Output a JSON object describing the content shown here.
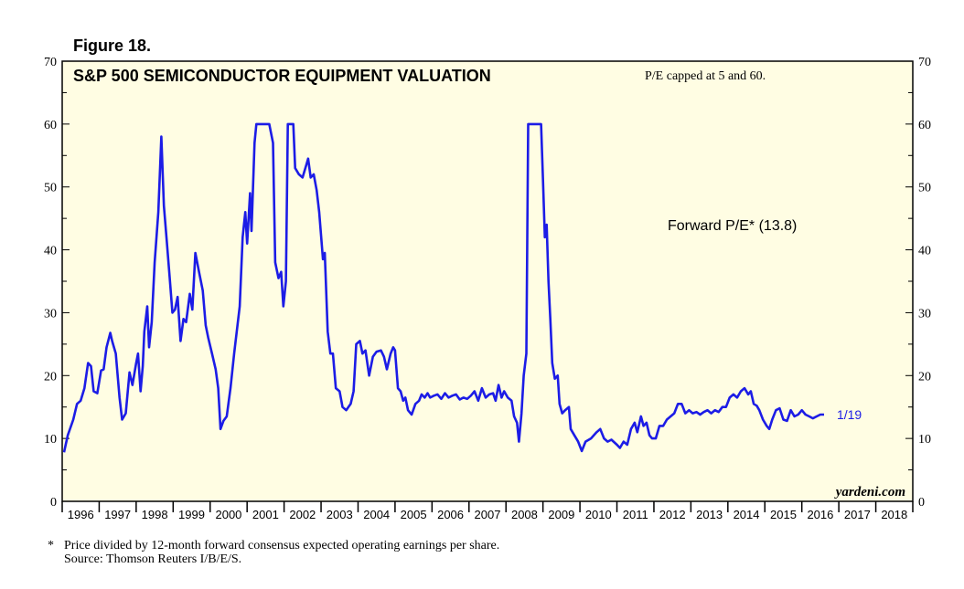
{
  "figure_label": "Figure 18.",
  "footnote": {
    "marker": "*",
    "text": "Price divided by 12-month forward consensus expected operating earnings per share.",
    "source": "Source: Thomson Reuters I/B/E/S."
  },
  "chart_data": {
    "type": "line",
    "title": "S&P 500 SEMICONDUCTOR EQUIPMENT VALUATION",
    "note": "P/E capped at 5 and 60.",
    "watermark": "yardeni.com",
    "ylim": [
      0,
      70
    ],
    "yticks": [
      "0",
      "10",
      "20",
      "30",
      "40",
      "50",
      "60",
      "70"
    ],
    "xlim": [
      1996,
      2019
    ],
    "xtick_labels": [
      "1996",
      "1997",
      "1998",
      "1999",
      "2000",
      "2001",
      "2002",
      "2003",
      "2004",
      "2005",
      "2006",
      "2007",
      "2008",
      "2009",
      "2010",
      "2011",
      "2012",
      "2013",
      "2014",
      "2015",
      "2016",
      "2017",
      "2018"
    ],
    "colors": {
      "plot_bg": "#FFFDE3",
      "line": "#1C1CE6",
      "axis": "#000000"
    },
    "series": [
      {
        "name": "Forward P/E* (13.8)",
        "end_label": "1/19",
        "points": [
          [
            1996.05,
            7.8
          ],
          [
            1996.15,
            10.5
          ],
          [
            1996.3,
            13
          ],
          [
            1996.4,
            15.5
          ],
          [
            1996.5,
            16
          ],
          [
            1996.6,
            18
          ],
          [
            1996.7,
            22
          ],
          [
            1996.78,
            21.5
          ],
          [
            1996.85,
            17.5
          ],
          [
            1996.95,
            17.2
          ],
          [
            1997.05,
            20.8
          ],
          [
            1997.12,
            21
          ],
          [
            1997.2,
            24.5
          ],
          [
            1997.3,
            26.8
          ],
          [
            1997.35,
            25.5
          ],
          [
            1997.45,
            23.5
          ],
          [
            1997.55,
            16.5
          ],
          [
            1997.62,
            13
          ],
          [
            1997.72,
            14
          ],
          [
            1997.82,
            20.5
          ],
          [
            1997.9,
            18.5
          ],
          [
            1998.0,
            22
          ],
          [
            1998.05,
            23.5
          ],
          [
            1998.12,
            17.5
          ],
          [
            1998.18,
            21.5
          ],
          [
            1998.22,
            27
          ],
          [
            1998.3,
            31
          ],
          [
            1998.35,
            24.5
          ],
          [
            1998.42,
            28.5
          ],
          [
            1998.5,
            38
          ],
          [
            1998.6,
            46
          ],
          [
            1998.68,
            58
          ],
          [
            1998.75,
            47
          ],
          [
            1998.82,
            42
          ],
          [
            1998.9,
            36
          ],
          [
            1998.98,
            30
          ],
          [
            1999.05,
            30.5
          ],
          [
            1999.12,
            32.5
          ],
          [
            1999.2,
            25.5
          ],
          [
            1999.28,
            29
          ],
          [
            1999.35,
            28.5
          ],
          [
            1999.45,
            33
          ],
          [
            1999.52,
            30.5
          ],
          [
            1999.6,
            39.5
          ],
          [
            1999.7,
            36.5
          ],
          [
            1999.8,
            33.5
          ],
          [
            1999.88,
            28
          ],
          [
            1999.95,
            26
          ],
          [
            2000.05,
            23.5
          ],
          [
            2000.15,
            21
          ],
          [
            2000.22,
            18
          ],
          [
            2000.28,
            11.5
          ],
          [
            2000.36,
            12.8
          ],
          [
            2000.45,
            13.5
          ],
          [
            2000.55,
            18
          ],
          [
            2000.65,
            23.5
          ],
          [
            2000.8,
            31
          ],
          [
            2000.88,
            42
          ],
          [
            2000.95,
            46
          ],
          [
            2001.0,
            41
          ],
          [
            2001.08,
            49
          ],
          [
            2001.12,
            43
          ],
          [
            2001.2,
            57
          ],
          [
            2001.25,
            60
          ],
          [
            2001.4,
            60
          ],
          [
            2001.6,
            60
          ],
          [
            2001.7,
            57
          ],
          [
            2001.76,
            38
          ],
          [
            2001.85,
            35.5
          ],
          [
            2001.92,
            36.5
          ],
          [
            2001.98,
            31
          ],
          [
            2002.05,
            35
          ],
          [
            2002.1,
            60
          ],
          [
            2002.25,
            60
          ],
          [
            2002.3,
            53
          ],
          [
            2002.4,
            52
          ],
          [
            2002.5,
            51.5
          ],
          [
            2002.6,
            53.5
          ],
          [
            2002.65,
            54.5
          ],
          [
            2002.72,
            51.5
          ],
          [
            2002.8,
            52
          ],
          [
            2002.88,
            49.5
          ],
          [
            2002.95,
            46
          ],
          [
            2003.05,
            38.5
          ],
          [
            2003.1,
            39.5
          ],
          [
            2003.18,
            27
          ],
          [
            2003.25,
            23.5
          ],
          [
            2003.32,
            23.5
          ],
          [
            2003.4,
            18
          ],
          [
            2003.5,
            17.5
          ],
          [
            2003.58,
            15
          ],
          [
            2003.68,
            14.5
          ],
          [
            2003.8,
            15.5
          ],
          [
            2003.88,
            17.5
          ],
          [
            2003.95,
            25
          ],
          [
            2004.05,
            25.5
          ],
          [
            2004.12,
            23.5
          ],
          [
            2004.2,
            24
          ],
          [
            2004.3,
            20
          ],
          [
            2004.4,
            23
          ],
          [
            2004.5,
            23.8
          ],
          [
            2004.62,
            24
          ],
          [
            2004.7,
            23
          ],
          [
            2004.78,
            21
          ],
          [
            2004.88,
            23.5
          ],
          [
            2004.95,
            24.5
          ],
          [
            2005.0,
            24
          ],
          [
            2005.08,
            18
          ],
          [
            2005.15,
            17.5
          ],
          [
            2005.22,
            16
          ],
          [
            2005.28,
            16.5
          ],
          [
            2005.35,
            14.5
          ],
          [
            2005.45,
            13.8
          ],
          [
            2005.55,
            15.5
          ],
          [
            2005.65,
            16
          ],
          [
            2005.72,
            17
          ],
          [
            2005.8,
            16.5
          ],
          [
            2005.88,
            17.2
          ],
          [
            2005.95,
            16.5
          ],
          [
            2006.05,
            16.8
          ],
          [
            2006.15,
            17
          ],
          [
            2006.25,
            16.3
          ],
          [
            2006.35,
            17.2
          ],
          [
            2006.45,
            16.5
          ],
          [
            2006.55,
            16.8
          ],
          [
            2006.65,
            17
          ],
          [
            2006.75,
            16.2
          ],
          [
            2006.85,
            16.5
          ],
          [
            2006.95,
            16.3
          ],
          [
            2007.05,
            16.8
          ],
          [
            2007.15,
            17.5
          ],
          [
            2007.25,
            16
          ],
          [
            2007.35,
            18
          ],
          [
            2007.45,
            16.5
          ],
          [
            2007.55,
            17
          ],
          [
            2007.65,
            17.2
          ],
          [
            2007.72,
            16
          ],
          [
            2007.8,
            18.5
          ],
          [
            2007.88,
            16.5
          ],
          [
            2007.95,
            17.5
          ],
          [
            2008.05,
            16.5
          ],
          [
            2008.15,
            16
          ],
          [
            2008.22,
            13.5
          ],
          [
            2008.3,
            12.5
          ],
          [
            2008.35,
            9.5
          ],
          [
            2008.42,
            14
          ],
          [
            2008.48,
            20
          ],
          [
            2008.55,
            23.5
          ],
          [
            2008.6,
            60
          ],
          [
            2008.8,
            60
          ],
          [
            2008.95,
            60
          ],
          [
            2009.0,
            51
          ],
          [
            2009.05,
            42
          ],
          [
            2009.1,
            44
          ],
          [
            2009.15,
            35
          ],
          [
            2009.2,
            29
          ],
          [
            2009.25,
            22
          ],
          [
            2009.32,
            19.5
          ],
          [
            2009.4,
            20
          ],
          [
            2009.45,
            15.5
          ],
          [
            2009.52,
            14
          ],
          [
            2009.6,
            14.5
          ],
          [
            2009.7,
            15
          ],
          [
            2009.75,
            11.5
          ],
          [
            2009.85,
            10.5
          ],
          [
            2009.95,
            9.5
          ],
          [
            2010.05,
            8
          ],
          [
            2010.15,
            9.5
          ],
          [
            2010.3,
            10
          ],
          [
            2010.45,
            11
          ],
          [
            2010.55,
            11.5
          ],
          [
            2010.65,
            10
          ],
          [
            2010.75,
            9.5
          ],
          [
            2010.85,
            9.8
          ],
          [
            2011.0,
            9
          ],
          [
            2011.08,
            8.5
          ],
          [
            2011.18,
            9.5
          ],
          [
            2011.28,
            9
          ],
          [
            2011.38,
            11.5
          ],
          [
            2011.48,
            12.5
          ],
          [
            2011.55,
            11
          ],
          [
            2011.65,
            13.5
          ],
          [
            2011.72,
            12
          ],
          [
            2011.8,
            12.5
          ],
          [
            2011.88,
            10.5
          ],
          [
            2011.95,
            10
          ],
          [
            2012.05,
            10
          ],
          [
            2012.15,
            12
          ],
          [
            2012.25,
            12
          ],
          [
            2012.35,
            13
          ],
          [
            2012.45,
            13.5
          ],
          [
            2012.55,
            14
          ],
          [
            2012.65,
            15.5
          ],
          [
            2012.75,
            15.5
          ],
          [
            2012.85,
            14
          ],
          [
            2012.95,
            14.5
          ],
          [
            2013.05,
            14
          ],
          [
            2013.15,
            14.2
          ],
          [
            2013.25,
            13.8
          ],
          [
            2013.35,
            14.2
          ],
          [
            2013.45,
            14.5
          ],
          [
            2013.55,
            14
          ],
          [
            2013.65,
            14.5
          ],
          [
            2013.75,
            14.2
          ],
          [
            2013.85,
            15
          ],
          [
            2013.95,
            15
          ],
          [
            2014.05,
            16.5
          ],
          [
            2014.15,
            17
          ],
          [
            2014.25,
            16.5
          ],
          [
            2014.35,
            17.5
          ],
          [
            2014.45,
            18
          ],
          [
            2014.55,
            17
          ],
          [
            2014.62,
            17.5
          ],
          [
            2014.7,
            15.5
          ],
          [
            2014.78,
            15.2
          ],
          [
            2014.85,
            14.5
          ],
          [
            2014.95,
            13
          ],
          [
            2015.05,
            12
          ],
          [
            2015.12,
            11.5
          ],
          [
            2015.2,
            13
          ],
          [
            2015.3,
            14.5
          ],
          [
            2015.4,
            14.8
          ],
          [
            2015.5,
            13
          ],
          [
            2015.6,
            12.8
          ],
          [
            2015.7,
            14.5
          ],
          [
            2015.8,
            13.5
          ],
          [
            2015.9,
            13.8
          ],
          [
            2016.0,
            14.5
          ],
          [
            2016.1,
            13.8
          ],
          [
            2016.2,
            13.5
          ],
          [
            2016.3,
            13.2
          ],
          [
            2016.4,
            13.5
          ],
          [
            2016.5,
            13.8
          ],
          [
            2016.6,
            13.8
          ]
        ]
      }
    ]
  }
}
